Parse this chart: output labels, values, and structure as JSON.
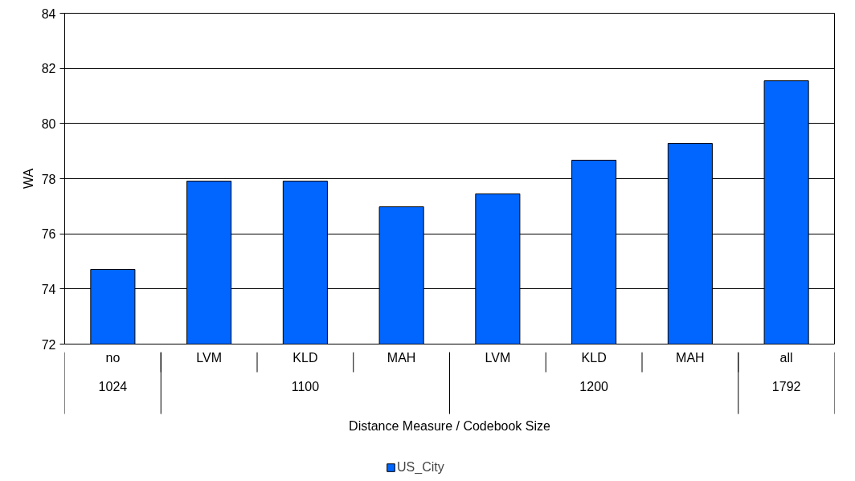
{
  "chart_data": {
    "type": "bar",
    "categories": [
      "no",
      "LVM",
      "KLD",
      "MAH",
      "LVM",
      "KLD",
      "MAH",
      "all"
    ],
    "series": [
      {
        "name": "US_City",
        "color": "#0066ff",
        "values": [
          74.71,
          77.91,
          77.91,
          76.98,
          77.45,
          78.67,
          79.28,
          81.55
        ]
      }
    ],
    "xlabel": "Distance Measure / Codebook Size",
    "ylabel": "WA",
    "annotations": [
      "1024",
      "1100",
      "1200",
      "1792"
    ],
    "ylim": [
      72,
      84
    ],
    "yticks": [
      72,
      74,
      76,
      78,
      80,
      82,
      84
    ],
    "grid": "y",
    "legend": "bottom"
  }
}
